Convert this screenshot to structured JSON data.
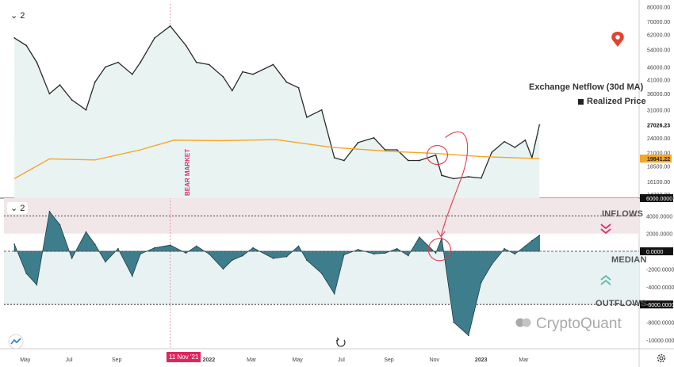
{
  "toolbar": {
    "top_pane_button": "2",
    "bottom_pane_button": "2"
  },
  "legend": {
    "title": "Exchange Netflow (30d MA)",
    "item": "Realized Price"
  },
  "annotations": {
    "bear_market": "BEAR MARKET",
    "date_tag": "11 Nov '21",
    "inflows": "INFLOWS",
    "median": "MEDIAN",
    "outflows": "OUTFLOWS",
    "brand": "CryptoQuant"
  },
  "colors": {
    "price_line": "#2b2b2b",
    "realized_price": "#f5a623",
    "netflow_fill": "#3e7d8c",
    "inflow_band": "#f1e6e8",
    "outflow_band": "#e9f2f2",
    "annotation_red": "#e23b4e",
    "bear_line": "#e39aa8"
  },
  "icons": {
    "pin": "location-pin-icon",
    "inflow_arrow": "double-chevron-down-icon",
    "outflow_arrow": "double-chevron-up-icon",
    "reset": "reset-icon",
    "settings": "gear-icon",
    "brand": "cryptoquant-logo-icon",
    "tv": "tradingview-icon"
  },
  "chart_data": [
    {
      "type": "line",
      "title": "",
      "y_scale": "log",
      "y_ticks": [
        "80000.00",
        "70000.00",
        "62000.00",
        "54000.00",
        "46000.00",
        "41000.00",
        "36000.00",
        "31000.00",
        "27026.23",
        "24000.00",
        "21000.00",
        "19841.22",
        "18500.00",
        "16100.00",
        "14300.00"
      ],
      "y_tick_values": [
        80000,
        70000,
        62000,
        54000,
        46000,
        41000,
        36000,
        31000,
        27026.23,
        24000,
        21000,
        19841.22,
        18500,
        16100,
        14300
      ],
      "x_ticks": [
        "May",
        "Jul",
        "Sep",
        "11 Nov '21",
        "2022",
        "Mar",
        "May",
        "Jul",
        "Sep",
        "Nov",
        "2023",
        "Mar"
      ],
      "x_tick_dates": [
        "2021-05",
        "2021-07",
        "2021-09",
        "2021-11-11",
        "2022-01",
        "2022-03",
        "2022-05",
        "2022-07",
        "2022-09",
        "2022-11",
        "2023-01",
        "2023-03"
      ],
      "series": [
        {
          "name": "",
          "dates": [
            "2021-04-15",
            "2021-05-01",
            "2021-05-15",
            "2021-06-01",
            "2021-06-15",
            "2021-07-01",
            "2021-07-20",
            "2021-08-01",
            "2021-08-15",
            "2021-09-01",
            "2021-09-20",
            "2021-10-01",
            "2021-10-20",
            "2021-11-10",
            "2021-12-01",
            "2021-12-15",
            "2022-01-01",
            "2022-01-20",
            "2022-02-01",
            "2022-02-15",
            "2022-03-01",
            "2022-03-28",
            "2022-04-15",
            "2022-05-01",
            "2022-05-12",
            "2022-06-01",
            "2022-06-18",
            "2022-07-01",
            "2022-07-20",
            "2022-08-10",
            "2022-08-25",
            "2022-09-10",
            "2022-09-25",
            "2022-10-10",
            "2022-11-01",
            "2022-11-09",
            "2022-11-25",
            "2022-12-15",
            "2023-01-01",
            "2023-01-15",
            "2023-02-01",
            "2023-02-15",
            "2023-03-01",
            "2023-03-10",
            "2023-03-20"
          ],
          "values": [
            60000,
            56000,
            48000,
            36000,
            39000,
            34000,
            31000,
            40000,
            46000,
            48000,
            43000,
            48000,
            60000,
            67000,
            56000,
            48000,
            47000,
            42000,
            37000,
            44000,
            43000,
            47000,
            40000,
            38000,
            29000,
            31000,
            20000,
            19500,
            23000,
            24000,
            21500,
            21500,
            19500,
            19500,
            20500,
            17000,
            16500,
            16800,
            16600,
            21000,
            23200,
            22000,
            23500,
            20000,
            27026
          ]
        },
        {
          "name": "Realized Price",
          "dates": [
            "2021-04-15",
            "2021-06-01",
            "2021-08-01",
            "2021-10-01",
            "2021-11-15",
            "2022-01-15",
            "2022-04-01",
            "2022-06-15",
            "2022-09-01",
            "2022-11-01",
            "2023-01-01",
            "2023-03-20"
          ],
          "values": [
            16500,
            19800,
            19600,
            21500,
            23500,
            23400,
            23600,
            22000,
            21200,
            20800,
            20200,
            19841.22
          ]
        }
      ]
    },
    {
      "type": "area",
      "title": "Exchange Netflow (30d MA)",
      "ylim": [
        -11000,
        6000
      ],
      "y_ticks": [
        "6000.0000",
        "4000.0000",
        "2000.0000",
        "0.0000",
        "-2000.0000",
        "-4000.0000",
        "-6000.0000",
        "-8000.0000",
        "-10000.0000"
      ],
      "y_tick_values": [
        6000,
        4000,
        2000,
        0,
        -2000,
        -4000,
        -6000,
        -8000,
        -10000
      ],
      "inflow_threshold": 4000,
      "outflow_threshold": -6000,
      "median": 0,
      "series": [
        {
          "name": "Exchange Netflow (30d MA)",
          "dates": [
            "2021-04-15",
            "2021-05-01",
            "2021-05-15",
            "2021-06-01",
            "2021-06-15",
            "2021-07-01",
            "2021-07-20",
            "2021-08-01",
            "2021-08-15",
            "2021-09-01",
            "2021-09-20",
            "2021-10-01",
            "2021-10-20",
            "2021-11-10",
            "2021-12-01",
            "2021-12-15",
            "2022-01-01",
            "2022-01-20",
            "2022-02-01",
            "2022-02-15",
            "2022-03-01",
            "2022-03-28",
            "2022-04-15",
            "2022-05-01",
            "2022-05-12",
            "2022-06-01",
            "2022-06-18",
            "2022-07-01",
            "2022-07-20",
            "2022-08-10",
            "2022-08-25",
            "2022-09-10",
            "2022-09-25",
            "2022-10-10",
            "2022-11-01",
            "2022-11-09",
            "2022-11-25",
            "2022-12-15",
            "2023-01-01",
            "2023-01-15",
            "2023-02-01",
            "2023-02-15",
            "2023-03-01",
            "2023-03-10",
            "2023-03-20"
          ],
          "values": [
            800,
            -2500,
            -3800,
            4500,
            3000,
            -800,
            2200,
            800,
            -1200,
            300,
            -2800,
            -300,
            400,
            700,
            -200,
            600,
            -300,
            -2000,
            -1000,
            -500,
            400,
            -800,
            -600,
            600,
            -1000,
            -2500,
            -4800,
            -400,
            200,
            -300,
            -200,
            300,
            -500,
            1600,
            -200,
            1500,
            -8000,
            -9500,
            -3500,
            -1500,
            300,
            -300,
            600,
            1200,
            1800
          ]
        }
      ]
    }
  ]
}
